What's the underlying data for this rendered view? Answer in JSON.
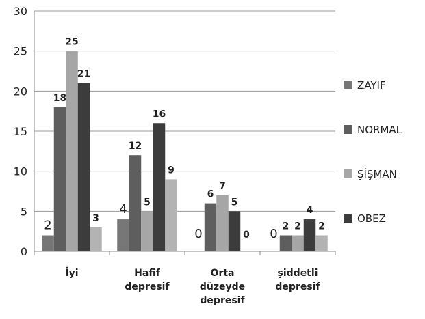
{
  "chart_data": {
    "type": "bar",
    "categories": [
      [
        "İyi"
      ],
      [
        "Hafif",
        "depresif"
      ],
      [
        "Orta",
        "düzeyde",
        "depresif"
      ],
      [
        "şiddetli",
        "depresif"
      ]
    ],
    "series": [
      {
        "name": "ZAYIF",
        "values": [
          2,
          4,
          0,
          0
        ],
        "color": "#777777"
      },
      {
        "name": "NORMAL",
        "values": [
          18,
          12,
          6,
          2
        ],
        "color": "#5e5e5e"
      },
      {
        "name": "ŞİŞMAN",
        "values": [
          25,
          5,
          7,
          2
        ],
        "color": "#a6a6a6"
      },
      {
        "name": "OBEZ",
        "values": [
          21,
          16,
          5,
          4
        ],
        "color": "#3c3c3c"
      },
      {
        "name": "",
        "values": [
          3,
          9,
          0,
          2
        ],
        "color": "#b3b3b3"
      }
    ],
    "y_ticks": [
      "0",
      "5",
      "10",
      "15",
      "20",
      "25",
      "30"
    ],
    "ylim": [
      0,
      30
    ],
    "grid": true,
    "legend_position": "right",
    "title": "",
    "xlabel": "",
    "ylabel": ""
  }
}
